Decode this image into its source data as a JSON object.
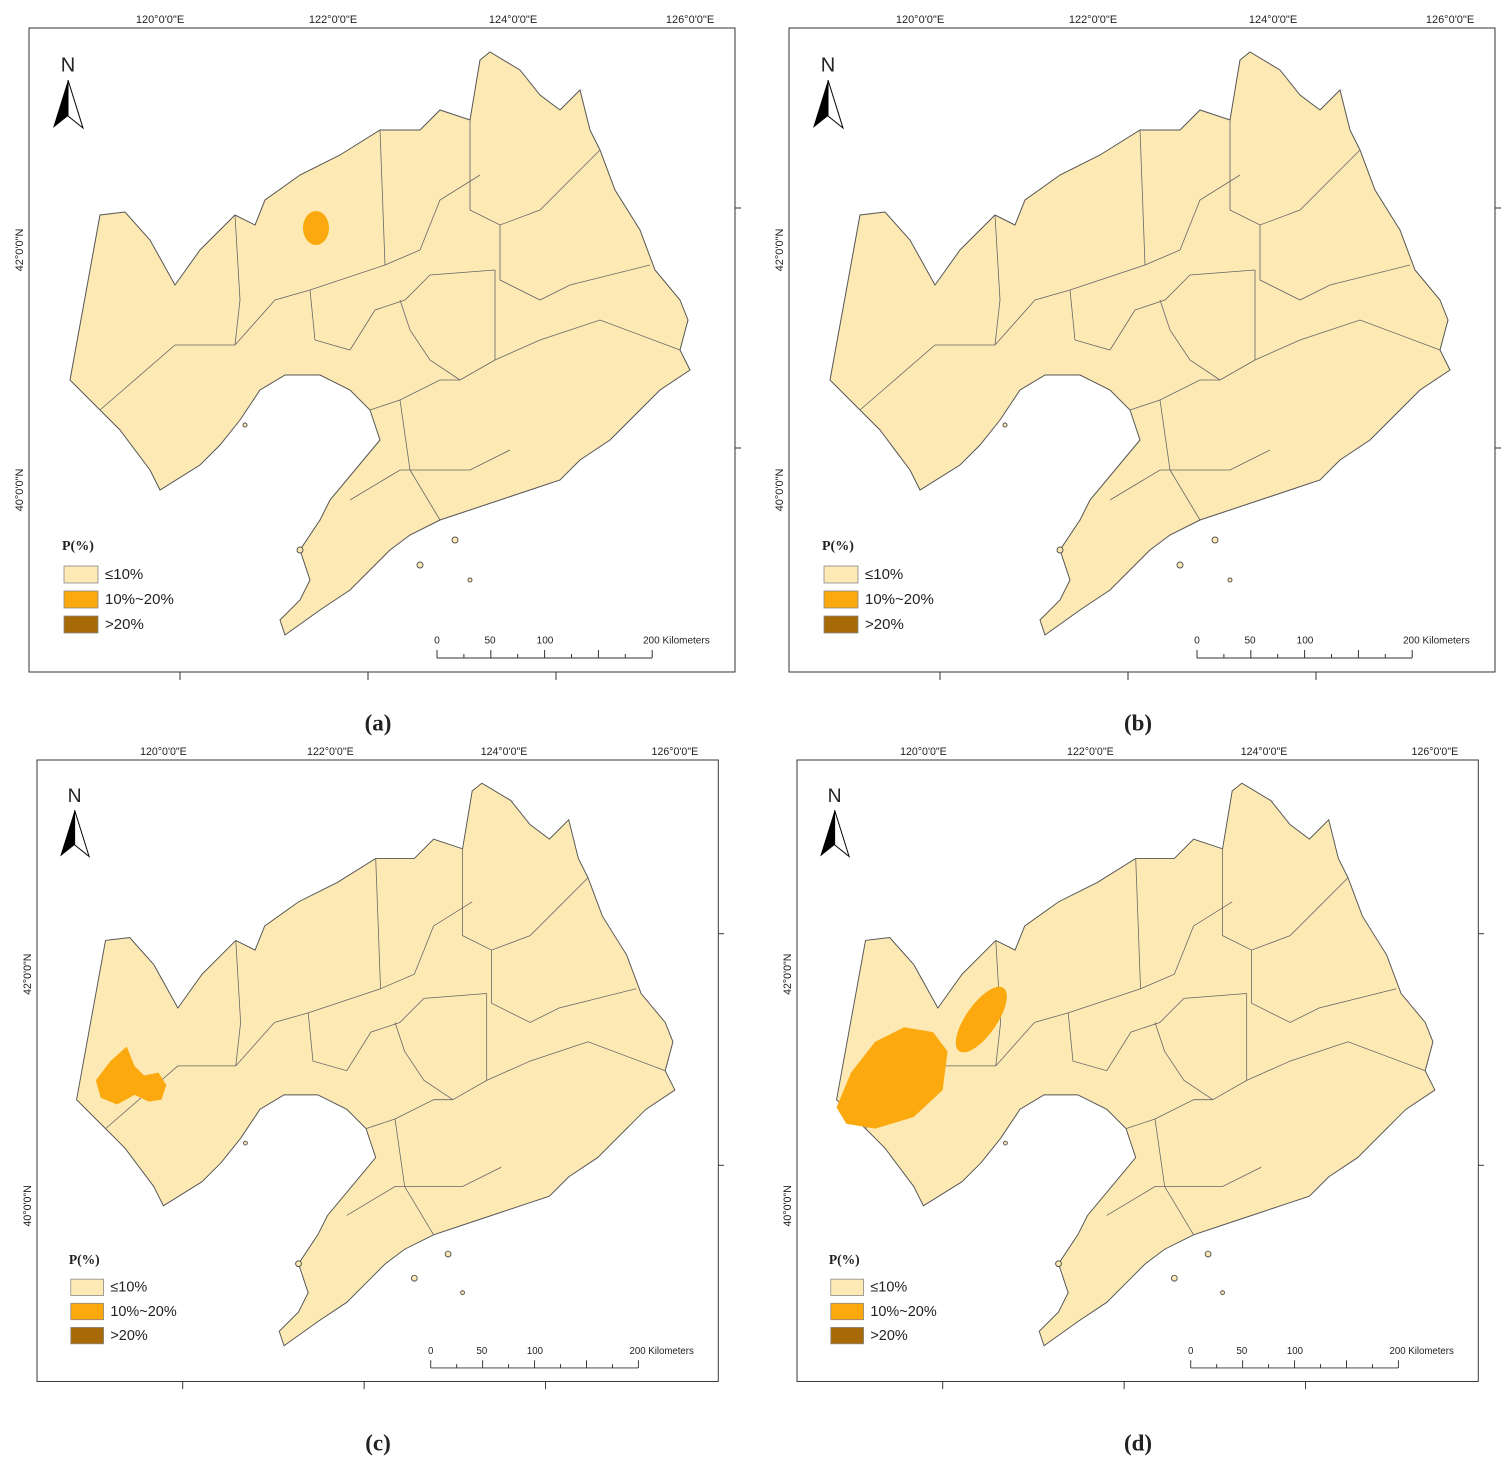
{
  "map": {
    "north": "N",
    "longitude_labels": [
      "120°0'0\"E",
      "122°0'0\"E",
      "124°0'0\"E",
      "126°0'0\"E"
    ],
    "latitude_labels": [
      "42°0'0\"N",
      "40°0'0\"N"
    ],
    "legend": {
      "title": "P(%)",
      "items": [
        {
          "label": "≤10%",
          "color": "#fde9b3"
        },
        {
          "label": "10%~20%",
          "color": "#fba90e"
        },
        {
          "label": ">20%",
          "color": "#a86a06"
        }
      ]
    },
    "scale_bar": [
      "0",
      "50",
      "100",
      "200 Kilometers"
    ]
  },
  "panels": [
    {
      "caption": "(a)"
    },
    {
      "caption": "(b)"
    },
    {
      "caption": "(c)"
    },
    {
      "caption": "(d)"
    }
  ]
}
